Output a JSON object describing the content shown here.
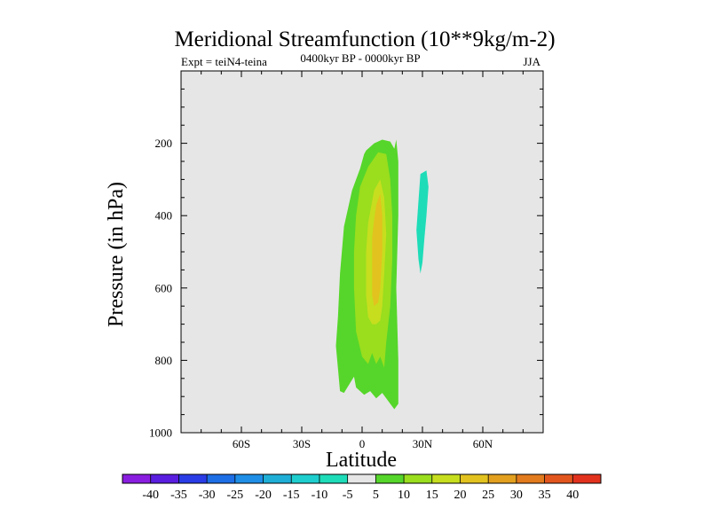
{
  "chart_data": {
    "type": "contour",
    "title": "Meridional Streamfunction (10**9kg/m-2)",
    "left_label": "Expt = teiN4-teina",
    "center_label": "0400kyr BP - 0000kyr BP",
    "right_label": "JJA",
    "xlabel": "Latitude",
    "ylabel": "Pressure (in hPa)",
    "xlim": [
      -90,
      90
    ],
    "ylim": [
      1000,
      0
    ],
    "x_ticks": [
      {
        "value": -60,
        "label": "60S"
      },
      {
        "value": -30,
        "label": "30S"
      },
      {
        "value": 0,
        "label": "0"
      },
      {
        "value": 30,
        "label": "30N"
      },
      {
        "value": 60,
        "label": "60N"
      }
    ],
    "y_ticks": [
      {
        "value": 200,
        "label": "200"
      },
      {
        "value": 400,
        "label": "400"
      },
      {
        "value": 600,
        "label": "600"
      },
      {
        "value": 800,
        "label": "800"
      },
      {
        "value": 1000,
        "label": "1000"
      }
    ],
    "background_color": "#e6e6e6",
    "colorbar": {
      "levels": [
        "-40",
        "-35",
        "-30",
        "-25",
        "-20",
        "-15",
        "-10",
        "-5",
        "5",
        "10",
        "15",
        "20",
        "25",
        "30",
        "35",
        "40"
      ],
      "colors": [
        "#8a1ee0",
        "#5a1ee0",
        "#2a3ce6",
        "#1e6ee6",
        "#1e8ee6",
        "#1eaed6",
        "#1ecece",
        "#1edcb8",
        "#e6e6e6",
        "#56d62a",
        "#9ade1e",
        "#c6de1e",
        "#e2c21e",
        "#e2a01e",
        "#e27a1e",
        "#e2561e",
        "#e2321e"
      ]
    },
    "contours": [
      {
        "name": "positive-5-to-10",
        "level": "5",
        "color": "#56d62a",
        "points": [
          [
            2,
            220
          ],
          [
            6,
            200
          ],
          [
            10,
            190
          ],
          [
            14,
            195
          ],
          [
            16,
            215
          ],
          [
            17,
            190
          ],
          [
            18,
            250
          ],
          [
            18,
            400
          ],
          [
            17,
            600
          ],
          [
            18,
            800
          ],
          [
            18,
            920
          ],
          [
            16,
            935
          ],
          [
            14,
            920
          ],
          [
            12,
            905
          ],
          [
            10,
            890
          ],
          [
            7,
            905
          ],
          [
            4,
            885
          ],
          [
            1,
            895
          ],
          [
            -3,
            875
          ],
          [
            -4,
            845
          ],
          [
            -9,
            890
          ],
          [
            -11,
            885
          ],
          [
            -13,
            760
          ],
          [
            -12,
            680
          ],
          [
            -11,
            560
          ],
          [
            -9,
            430
          ],
          [
            -5,
            330
          ],
          [
            -1,
            270
          ],
          [
            1,
            230
          ]
        ]
      },
      {
        "name": "positive-10-to-15",
        "level": "10",
        "color": "#9ade1e",
        "points": [
          [
            3,
            265
          ],
          [
            8,
            225
          ],
          [
            12,
            230
          ],
          [
            14,
            300
          ],
          [
            15,
            400
          ],
          [
            15,
            520
          ],
          [
            14,
            650
          ],
          [
            12,
            750
          ],
          [
            11,
            820
          ],
          [
            9,
            790
          ],
          [
            7,
            810
          ],
          [
            5,
            780
          ],
          [
            3,
            810
          ],
          [
            0,
            790
          ],
          [
            -3,
            720
          ],
          [
            -4,
            600
          ],
          [
            -4,
            500
          ],
          [
            -3,
            400
          ],
          [
            -1,
            320
          ]
        ]
      },
      {
        "name": "positive-15-to-20",
        "level": "15",
        "color": "#c6de1e",
        "points": [
          [
            6,
            330
          ],
          [
            9,
            300
          ],
          [
            11,
            350
          ],
          [
            12,
            450
          ],
          [
            11,
            560
          ],
          [
            10,
            650
          ],
          [
            9,
            690
          ],
          [
            7,
            700
          ],
          [
            5,
            700
          ],
          [
            3,
            680
          ],
          [
            2,
            620
          ],
          [
            2,
            500
          ],
          [
            3,
            420
          ],
          [
            5,
            360
          ]
        ]
      },
      {
        "name": "positive-20-to-25",
        "level": "20",
        "color": "#e2c21e",
        "points": [
          [
            7,
            370
          ],
          [
            9,
            340
          ],
          [
            10,
            400
          ],
          [
            10,
            500
          ],
          [
            9,
            600
          ],
          [
            8,
            640
          ],
          [
            6,
            650
          ],
          [
            5,
            620
          ],
          [
            5,
            550
          ],
          [
            5,
            460
          ],
          [
            6,
            410
          ]
        ]
      },
      {
        "name": "negative-10-to-5",
        "level": "-5",
        "color": "#1edcb8",
        "points": [
          [
            29,
            285
          ],
          [
            32,
            275
          ],
          [
            33,
            320
          ],
          [
            32,
            400
          ],
          [
            31,
            460
          ],
          [
            30,
            530
          ],
          [
            29,
            560
          ],
          [
            28,
            520
          ],
          [
            27,
            440
          ],
          [
            28,
            360
          ]
        ]
      }
    ]
  }
}
